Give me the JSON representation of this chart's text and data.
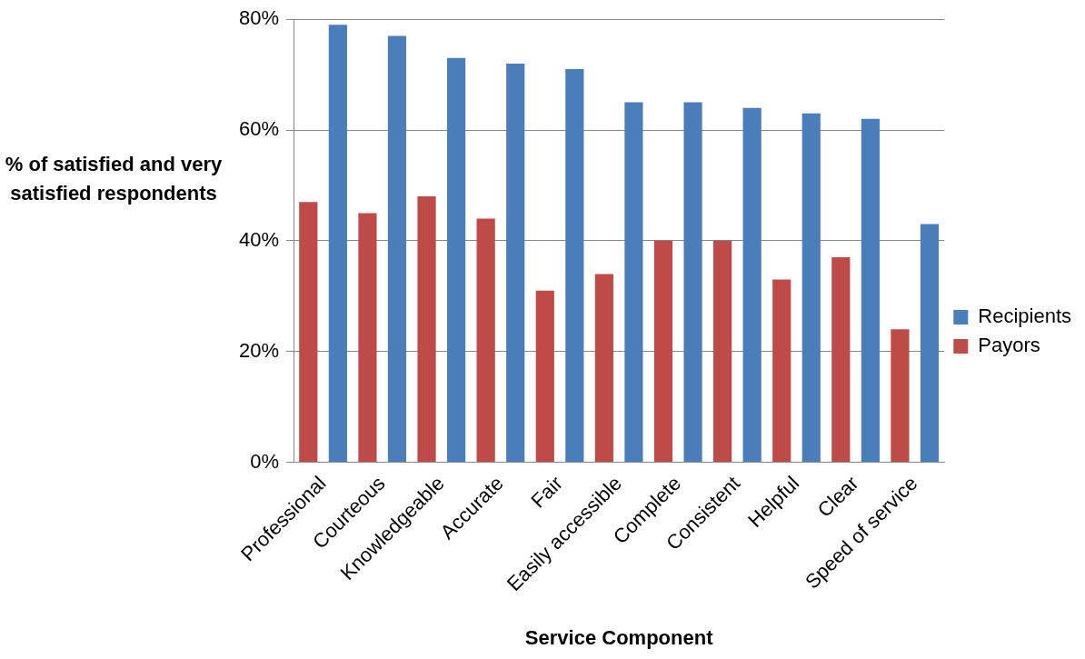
{
  "chart_data": {
    "type": "bar",
    "xlabel": "Service Component",
    "ylabel": "% of satisfied and very satisfied respondents",
    "categories": [
      "Professional",
      "Courteous",
      "Knowledgeable",
      "Accurate",
      "Fair",
      "Easily accessible",
      "Complete",
      "Consistent",
      "Helpful",
      "Clear",
      "Speed of service"
    ],
    "series": [
      {
        "name": "Payors",
        "color": "#be4b48",
        "values": [
          47,
          45,
          48,
          44,
          31,
          34,
          40,
          40,
          33,
          37,
          24
        ]
      },
      {
        "name": "Recipients",
        "color": "#4a7ebb",
        "values": [
          79,
          77,
          73,
          72,
          71,
          65,
          65,
          64,
          63,
          62,
          43
        ]
      }
    ],
    "ylim": [
      0,
      80
    ],
    "yticks": [
      {
        "value": 0,
        "label": "0%"
      },
      {
        "value": 20,
        "label": "20%"
      },
      {
        "value": 40,
        "label": "40%"
      },
      {
        "value": 60,
        "label": "60%"
      },
      {
        "value": 80,
        "label": "80%"
      }
    ],
    "grid": "y",
    "legend": "right"
  }
}
